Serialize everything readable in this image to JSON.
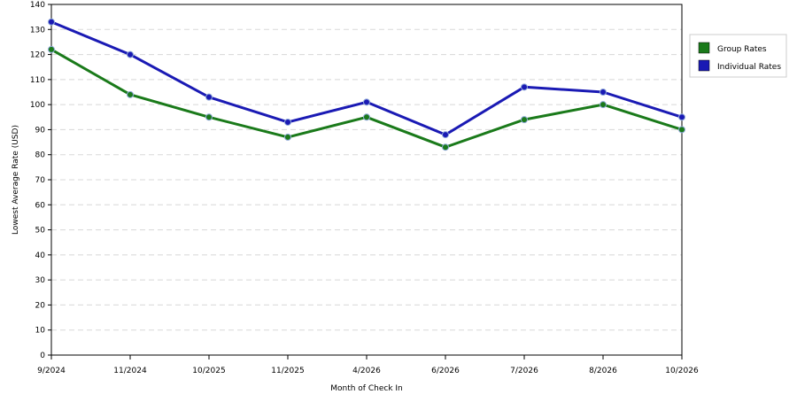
{
  "chart_data": {
    "type": "line",
    "categories": [
      "9/2024",
      "11/2024",
      "10/2025",
      "11/2025",
      "4/2026",
      "6/2026",
      "7/2026",
      "8/2026",
      "10/2026"
    ],
    "series": [
      {
        "name": "Group Rates",
        "color": "#1a7a1a",
        "values": [
          122,
          104,
          95,
          87,
          95,
          83,
          94,
          100,
          90
        ]
      },
      {
        "name": "Individual Rates",
        "color": "#1a1ab4",
        "values": [
          133,
          120,
          103,
          93,
          101,
          88,
          107,
          105,
          95
        ]
      }
    ],
    "xlabel": "Month of Check In",
    "ylabel": "Lowest Average Rate (USD)",
    "ylim": [
      0,
      140
    ],
    "ytick_step": 10,
    "grid": true,
    "legend_position": "right"
  }
}
